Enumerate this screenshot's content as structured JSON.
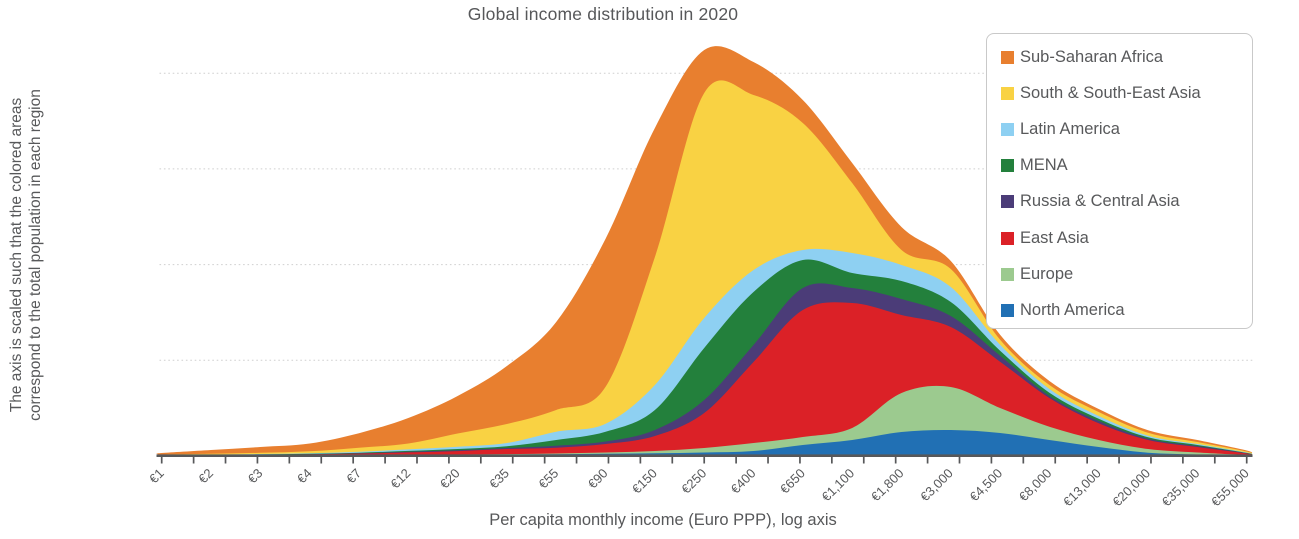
{
  "title": "Global income distribution in 2020",
  "y_axis_note": {
    "line1": "The axis is scaled such that the colored areas",
    "line2": "correspond to the total population in each region"
  },
  "x_axis": {
    "label": "Per capita monthly income (Euro PPP), log axis"
  },
  "chart_data": {
    "type": "area",
    "stacked": true,
    "title": "Global income distribution in 2020",
    "xlabel": "Per capita monthly income (Euro PPP), log axis",
    "ylabel": "",
    "x_scale": "log",
    "grid": "4 dotted horizontal gridlines; y axis has no tick labels",
    "legend_position": "top-right",
    "legend_order_top_to_bottom": [
      "Sub-Saharan Africa",
      "South & South-East Asia",
      "Latin America",
      "MENA",
      "Russia & Central Asia",
      "East Asia",
      "Europe",
      "North America"
    ],
    "categories": [
      "€1",
      "€2",
      "€3",
      "€4",
      "€7",
      "€12",
      "€20",
      "€35",
      "€55",
      "€90",
      "€150",
      "€250",
      "€400",
      "€650",
      "€1,100",
      "€1,800",
      "€3,000",
      "€4,500",
      "€8,000",
      "€13,000",
      "€20,000",
      "€35,000",
      "€55,000"
    ],
    "x_values_eur": [
      1,
      2,
      3,
      4,
      7,
      12,
      20,
      35,
      55,
      90,
      150,
      250,
      400,
      650,
      1100,
      1800,
      3000,
      4500,
      8000,
      13000,
      20000,
      35000,
      55000
    ],
    "values_unit": "relative population density (no numeric y labels shown in chart)",
    "series_order": "bottom of stack to top of stack",
    "series": [
      {
        "name": "North America",
        "color": "#2170b4",
        "values": [
          0.2,
          0.3,
          0.4,
          0.5,
          0.7,
          0.9,
          1.1,
          1.4,
          1.7,
          2.2,
          2.7,
          3.5,
          5,
          11,
          16,
          24,
          26,
          23,
          16,
          9,
          3.3,
          1.5,
          0.4
        ]
      },
      {
        "name": "Europe",
        "color": "#9cca8f",
        "values": [
          0.1,
          0.1,
          0.1,
          0.2,
          0.2,
          0.2,
          0.4,
          0.5,
          0.8,
          1.3,
          2.3,
          4.5,
          8,
          8,
          12,
          39,
          43,
          25,
          13.3,
          7,
          3.7,
          2,
          0.6
        ]
      },
      {
        "name": "East Asia",
        "color": "#db2127",
        "values": [
          0.3,
          0.4,
          0.6,
          0.9,
          1.5,
          2.5,
          3.4,
          5.1,
          5.8,
          8.5,
          15,
          35,
          81,
          127,
          125,
          78,
          60,
          46.3,
          28.7,
          16.7,
          9,
          5.5,
          1.5
        ]
      },
      {
        "name": "Russia & Central Asia",
        "color": "#4b3c78",
        "values": [
          0.1,
          0.1,
          0.2,
          0.2,
          0.3,
          0.6,
          0.8,
          1.0,
          2.0,
          2.5,
          6,
          13,
          17,
          22,
          15,
          16,
          11,
          6,
          2,
          2.3,
          1.3,
          1,
          0.3
        ]
      },
      {
        "name": "MENA",
        "color": "#23803c",
        "values": [
          0.1,
          0.2,
          0.3,
          0.4,
          0.6,
          0.9,
          1.3,
          1.8,
          5.7,
          9.7,
          20,
          52,
          53,
          28,
          15,
          18,
          14,
          5,
          3.3,
          2.3,
          1.4,
          1,
          0.3
        ]
      },
      {
        "name": "Latin America",
        "color": "#8ed0f2",
        "values": [
          0.2,
          0.3,
          0.4,
          0.6,
          1.0,
          1.5,
          2.2,
          3.2,
          8.3,
          8,
          25,
          30,
          22,
          10,
          20,
          16,
          15,
          6,
          3.7,
          2.7,
          1.6,
          1,
          0.4
        ]
      },
      {
        "name": "South & South-East Asia",
        "color": "#f9d243",
        "values": [
          0.4,
          0.8,
          1.2,
          1.9,
          4,
          5.9,
          13.3,
          19,
          21.7,
          37,
          128,
          225,
          175,
          127,
          70,
          15,
          18,
          5,
          4,
          4,
          3,
          2,
          1
        ]
      },
      {
        "name": "Sub-Saharan Africa",
        "color": "#e87f2f",
        "values": [
          1.6,
          3.8,
          5.8,
          7.8,
          14.5,
          25.5,
          37.5,
          58,
          88,
          148,
          129,
          43,
          33,
          23,
          20,
          23,
          8,
          5,
          4,
          3,
          2.5,
          2,
          1
        ]
      }
    ]
  }
}
